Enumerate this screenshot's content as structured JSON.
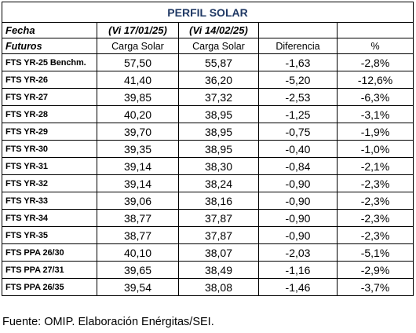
{
  "title": "PERFIL SOLAR",
  "fecha_label": "Fecha",
  "date_1": "(Vi 17/01/25)",
  "date_2": "(Vi 14/02/25)",
  "headers": {
    "futuros": "Futuros",
    "carga_1": "Carga Solar",
    "carga_2": "Carga Solar",
    "diferencia": "Diferencia",
    "pct": "%"
  },
  "rows": [
    {
      "name": "FTS YR-25 Benchm.",
      "v1": "57,50",
      "v2": "55,87",
      "diff": "-1,63",
      "pct": "-2,8%"
    },
    {
      "name": "FTS YR-26",
      "v1": "41,40",
      "v2": "36,20",
      "diff": "-5,20",
      "pct": "-12,6%"
    },
    {
      "name": "FTS YR-27",
      "v1": "39,85",
      "v2": "37,32",
      "diff": "-2,53",
      "pct": "-6,3%"
    },
    {
      "name": "FTS YR-28",
      "v1": "40,20",
      "v2": "38,95",
      "diff": "-1,25",
      "pct": "-3,1%"
    },
    {
      "name": "FTS YR-29",
      "v1": "39,70",
      "v2": "38,95",
      "diff": "-0,75",
      "pct": "-1,9%"
    },
    {
      "name": "FTS YR-30",
      "v1": "39,35",
      "v2": "38,95",
      "diff": "-0,40",
      "pct": "-1,0%"
    },
    {
      "name": "FTS YR-31",
      "v1": "39,14",
      "v2": "38,30",
      "diff": "-0,84",
      "pct": "-2,1%"
    },
    {
      "name": "FTS YR-32",
      "v1": "39,14",
      "v2": "38,24",
      "diff": "-0,90",
      "pct": "-2,3%"
    },
    {
      "name": "FTS YR-33",
      "v1": "39,06",
      "v2": "38,16",
      "diff": "-0,90",
      "pct": "-2,3%"
    },
    {
      "name": "FTS YR-34",
      "v1": "38,77",
      "v2": "37,87",
      "diff": "-0,90",
      "pct": "-2,3%"
    },
    {
      "name": "FTS YR-35",
      "v1": "38,77",
      "v2": "37,87",
      "diff": "-0,90",
      "pct": "-2,3%"
    },
    {
      "name": "FTS PPA 26/30",
      "v1": "40,10",
      "v2": "38,07",
      "diff": "-2,03",
      "pct": "-5,1%"
    },
    {
      "name": "FTS PPA 27/31",
      "v1": "39,65",
      "v2": "38,49",
      "diff": "-1,16",
      "pct": "-2,9%"
    },
    {
      "name": "FTS PPA 26/35",
      "v1": "39,54",
      "v2": "38,08",
      "diff": "-1,46",
      "pct": "-3,7%"
    }
  ],
  "source": "Fuente: OMIP. Elaboración Enérgitas/SEI."
}
